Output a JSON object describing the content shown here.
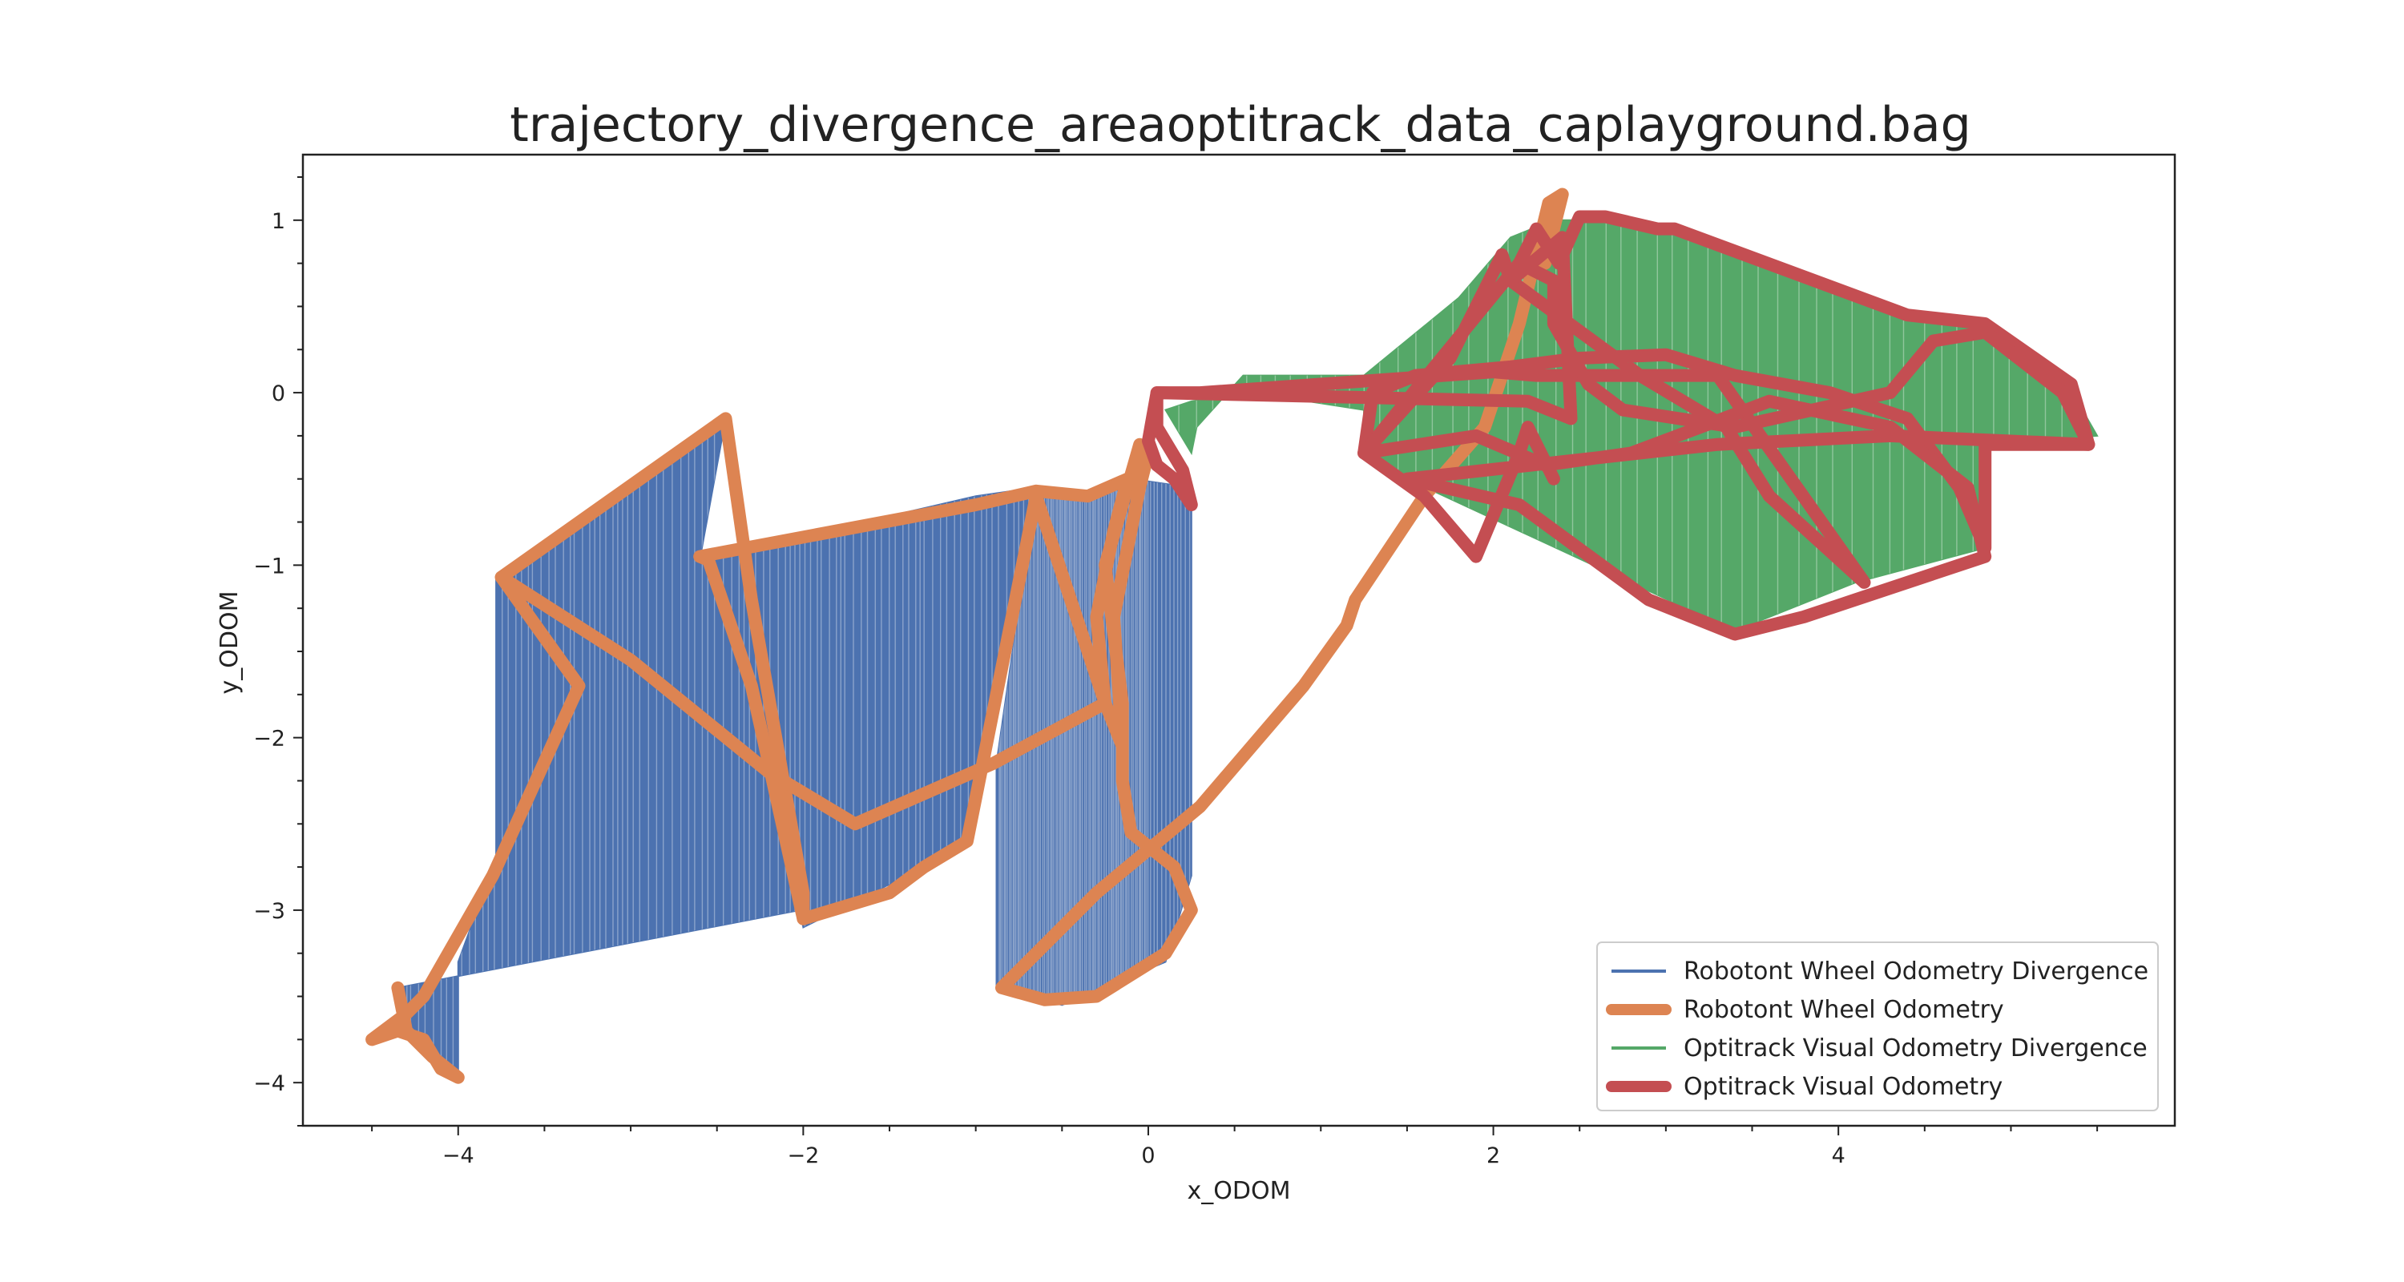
{
  "chart_data": {
    "type": "line",
    "title": "trajectory_divergence_areaoptitrack_data_caplayground.bag",
    "xlabel": "x_ODOM",
    "ylabel": "y_ODOM",
    "xlim": [
      -4.9,
      5.95
    ],
    "ylim": [
      -4.25,
      1.38
    ],
    "x_ticks": [
      -4,
      -2,
      0,
      2,
      4
    ],
    "x_tick_labels": [
      "−4",
      "−2",
      "0",
      "2",
      "4"
    ],
    "y_ticks": [
      -4,
      -3,
      -2,
      -1,
      0,
      1
    ],
    "y_tick_labels": [
      "−4",
      "−3",
      "−2",
      "−1",
      "0",
      "1"
    ],
    "grid": false,
    "legend_position": "lower-right",
    "series": [
      {
        "name": "Robotont Wheel Odometry Divergence",
        "kind": "divergence",
        "color": "#4c72b0",
        "ref_series": "Robotont Wheel Odometry",
        "polygon": [
          [
            -4.35,
            -3.45
          ],
          [
            -4.3,
            -3.7
          ],
          [
            -4.1,
            -3.9
          ],
          [
            -4.0,
            -3.95
          ],
          [
            -4.0,
            -3.3
          ],
          [
            -3.78,
            -2.7
          ],
          [
            -3.78,
            -1.07
          ],
          [
            -2.45,
            -0.15
          ],
          [
            -2.6,
            -0.97
          ],
          [
            -1.0,
            -0.6
          ],
          [
            -0.65,
            -0.55
          ],
          [
            -1.1,
            -2.65
          ],
          [
            -2.0,
            -3.1
          ],
          [
            -2.02,
            -3.0
          ]
        ],
        "polygon2": [
          [
            -0.88,
            -3.45
          ],
          [
            -0.88,
            -2.15
          ],
          [
            -0.65,
            -0.55
          ],
          [
            -0.3,
            -0.6
          ],
          [
            -0.1,
            -0.5
          ],
          [
            0.25,
            -0.55
          ],
          [
            0.25,
            -2.8
          ],
          [
            0.1,
            -3.3
          ],
          [
            -0.5,
            -3.55
          ]
        ]
      },
      {
        "name": "Robotont Wheel Odometry",
        "kind": "path",
        "color": "#dd8452",
        "points": [
          [
            -3.75,
            -1.07
          ],
          [
            -2.45,
            -0.15
          ],
          [
            -2.3,
            -1.2
          ],
          [
            -2.0,
            -2.9
          ],
          [
            -2.0,
            -3.05
          ],
          [
            -1.5,
            -2.9
          ],
          [
            -1.3,
            -2.75
          ],
          [
            -1.05,
            -2.6
          ],
          [
            -0.65,
            -0.6
          ],
          [
            -0.25,
            -1.8
          ],
          [
            -0.15,
            -2.05
          ],
          [
            -0.2,
            -1.3
          ],
          [
            -0.05,
            -0.55
          ],
          [
            0.0,
            -0.35
          ],
          [
            -0.05,
            -0.3
          ],
          [
            -0.25,
            -1.0
          ],
          [
            -0.15,
            -1.8
          ],
          [
            -0.15,
            -2.25
          ],
          [
            -0.1,
            -2.55
          ],
          [
            0.15,
            -2.75
          ],
          [
            0.25,
            -3.0
          ],
          [
            0.1,
            -3.25
          ],
          [
            -0.3,
            -3.5
          ],
          [
            -0.6,
            -3.52
          ],
          [
            -0.85,
            -3.45
          ],
          [
            -0.3,
            -2.9
          ],
          [
            0.3,
            -2.4
          ],
          [
            0.9,
            -1.7
          ],
          [
            1.15,
            -1.35
          ],
          [
            1.2,
            -1.2
          ],
          [
            1.6,
            -0.6
          ],
          [
            1.95,
            -0.2
          ],
          [
            2.15,
            0.4
          ],
          [
            2.32,
            1.1
          ],
          [
            2.4,
            1.15
          ],
          [
            2.3,
            0.75
          ]
        ],
        "points2": [
          [
            -2.0,
            -3.05
          ],
          [
            -2.3,
            -1.7
          ],
          [
            -2.55,
            -0.97
          ],
          [
            -2.6,
            -0.95
          ],
          [
            -1.0,
            -0.65
          ],
          [
            -0.65,
            -0.57
          ],
          [
            -0.35,
            -0.6
          ],
          [
            -0.12,
            -0.5
          ],
          [
            -0.2,
            -0.8
          ],
          [
            -0.3,
            -1.3
          ],
          [
            -0.25,
            -1.8
          ],
          [
            -0.9,
            -2.15
          ],
          [
            -1.7,
            -2.5
          ],
          [
            -2.2,
            -2.2
          ],
          [
            -3.0,
            -1.55
          ],
          [
            -3.75,
            -1.07
          ],
          [
            -3.3,
            -1.7
          ],
          [
            -3.8,
            -2.8
          ],
          [
            -4.2,
            -3.5
          ],
          [
            -4.3,
            -3.6
          ],
          [
            -4.5,
            -3.75
          ],
          [
            -4.35,
            -3.7
          ],
          [
            -4.2,
            -3.75
          ],
          [
            -4.1,
            -3.92
          ],
          [
            -4.0,
            -3.97
          ],
          [
            -4.15,
            -3.85
          ],
          [
            -4.3,
            -3.7
          ],
          [
            -4.35,
            -3.45
          ]
        ]
      },
      {
        "name": "Optitrack Visual Odometry Divergence",
        "kind": "divergence",
        "color": "#55a868",
        "polygon": [
          [
            0.1,
            -0.1
          ],
          [
            0.25,
            -0.35
          ],
          [
            0.28,
            -0.2
          ],
          [
            0.55,
            0.1
          ],
          [
            1.25,
            0.1
          ],
          [
            1.8,
            0.55
          ],
          [
            2.1,
            0.9
          ],
          [
            2.35,
            1.0
          ],
          [
            2.7,
            1.0
          ],
          [
            3.0,
            0.97
          ],
          [
            3.5,
            0.8
          ],
          [
            4.45,
            0.42
          ],
          [
            4.75,
            0.42
          ],
          [
            5.3,
            0.1
          ],
          [
            5.5,
            -0.25
          ],
          [
            4.85,
            -0.3
          ],
          [
            4.85,
            -0.9
          ],
          [
            4.1,
            -1.1
          ],
          [
            3.4,
            -1.38
          ],
          [
            1.5,
            -0.5
          ],
          [
            1.25,
            -0.35
          ],
          [
            1.25,
            -0.1
          ],
          [
            0.6,
            0.0
          ],
          [
            0.25,
            -0.05
          ]
        ]
      },
      {
        "name": "Optitrack Visual Odometry",
        "kind": "path",
        "color": "#c44e52",
        "points": [
          [
            0.05,
            -0.42
          ],
          [
            0.0,
            -0.28
          ],
          [
            0.05,
            0.0
          ],
          [
            0.3,
            0.0
          ],
          [
            2.0,
            0.12
          ],
          [
            2.25,
            0.1
          ],
          [
            3.3,
            0.1
          ],
          [
            4.15,
            -1.1
          ],
          [
            3.6,
            -0.6
          ],
          [
            3.35,
            -0.2
          ],
          [
            2.85,
            0.1
          ],
          [
            2.1,
            0.65
          ],
          [
            2.25,
            0.95
          ],
          [
            2.38,
            0.75
          ],
          [
            2.5,
            1.02
          ],
          [
            2.65,
            1.02
          ],
          [
            2.95,
            0.95
          ],
          [
            3.05,
            0.95
          ],
          [
            4.4,
            0.45
          ],
          [
            4.85,
            0.4
          ],
          [
            5.35,
            0.05
          ],
          [
            5.45,
            -0.3
          ],
          [
            5.35,
            -0.3
          ],
          [
            4.85,
            -0.3
          ],
          [
            4.85,
            -0.9
          ],
          [
            4.7,
            -0.55
          ],
          [
            4.4,
            -0.15
          ],
          [
            3.95,
            0.0
          ],
          [
            3.4,
            0.1
          ],
          [
            3.0,
            0.22
          ],
          [
            2.5,
            0.2
          ],
          [
            2.1,
            0.15
          ],
          [
            1.55,
            0.1
          ],
          [
            1.3,
            0.0
          ],
          [
            1.25,
            -0.35
          ],
          [
            1.6,
            -0.6
          ],
          [
            1.9,
            -0.95
          ],
          [
            2.15,
            -0.35
          ],
          [
            2.2,
            -0.2
          ],
          [
            2.35,
            -0.5
          ]
        ],
        "points2": [
          [
            1.25,
            -0.35
          ],
          [
            2.15,
            0.75
          ],
          [
            2.35,
            0.65
          ],
          [
            2.35,
            0.4
          ],
          [
            2.55,
            0.05
          ],
          [
            2.75,
            -0.1
          ],
          [
            3.4,
            -0.2
          ],
          [
            4.3,
            0.0
          ],
          [
            4.55,
            0.3
          ],
          [
            4.85,
            0.35
          ],
          [
            5.3,
            0.0
          ],
          [
            5.45,
            -0.3
          ],
          [
            4.3,
            -0.25
          ],
          [
            3.3,
            -0.3
          ],
          [
            1.5,
            -0.5
          ],
          [
            2.15,
            -0.65
          ],
          [
            2.9,
            -1.2
          ],
          [
            3.4,
            -1.4
          ],
          [
            3.8,
            -1.3
          ],
          [
            4.1,
            -1.2
          ],
          [
            4.85,
            -0.95
          ],
          [
            4.75,
            -0.55
          ],
          [
            4.3,
            -0.2
          ],
          [
            3.6,
            -0.05
          ],
          [
            2.8,
            -0.35
          ],
          [
            2.3,
            -0.42
          ],
          [
            1.9,
            -0.25
          ],
          [
            1.25,
            -0.35
          ],
          [
            1.75,
            0.2
          ],
          [
            2.05,
            0.8
          ],
          [
            2.1,
            0.65
          ],
          [
            2.4,
            0.9
          ],
          [
            2.45,
            -0.15
          ],
          [
            2.2,
            -0.05
          ],
          [
            0.05,
            0.0
          ],
          [
            0.05,
            -0.2
          ],
          [
            0.2,
            -0.45
          ],
          [
            0.25,
            -0.65
          ],
          [
            0.15,
            -0.5
          ],
          [
            0.05,
            -0.42
          ]
        ]
      }
    ]
  }
}
